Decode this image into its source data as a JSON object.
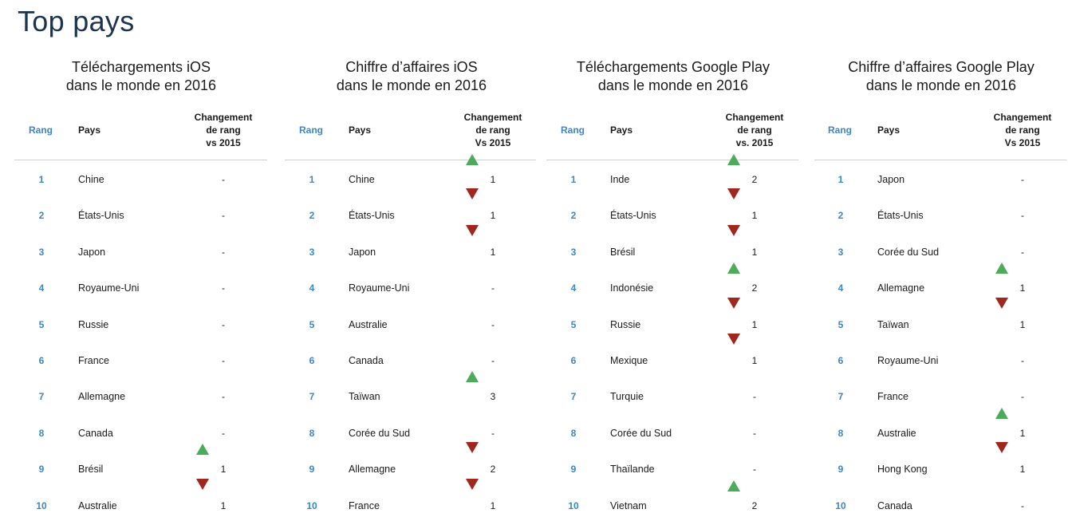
{
  "page": {
    "title": "Top pays"
  },
  "colors": {
    "rank_blue": "#3d86c6",
    "up_green": "#4caa5b",
    "down_red": "#a0271e",
    "title_navy": "#1d3450"
  },
  "panels": [
    {
      "title_line1": "Téléchargements iOS",
      "title_line2": "dans le monde en 2016",
      "header_rank": "Rang",
      "header_country": "Pays",
      "header_change_1": "Changement",
      "header_change_2": "de rang",
      "header_change_3": "vs 2015",
      "rows": [
        {
          "rank": "1",
          "country": "Chine",
          "change": "-",
          "direction": "none"
        },
        {
          "rank": "2",
          "country": "États-Unis",
          "change": "-",
          "direction": "none"
        },
        {
          "rank": "3",
          "country": "Japon",
          "change": "-",
          "direction": "none"
        },
        {
          "rank": "4",
          "country": "Royaume-Uni",
          "change": "-",
          "direction": "none"
        },
        {
          "rank": "5",
          "country": "Russie",
          "change": "-",
          "direction": "none"
        },
        {
          "rank": "6",
          "country": "France",
          "change": "-",
          "direction": "none"
        },
        {
          "rank": "7",
          "country": "Allemagne",
          "change": "-",
          "direction": "none"
        },
        {
          "rank": "8",
          "country": "Canada",
          "change": "-",
          "direction": "none"
        },
        {
          "rank": "9",
          "country": "Brésil",
          "change": "1",
          "direction": "up"
        },
        {
          "rank": "10",
          "country": "Australie",
          "change": "1",
          "direction": "down"
        }
      ]
    },
    {
      "title_line1": "Chiffre d’affaires iOS",
      "title_line2": "dans le monde en 2016",
      "header_rank": "Rang",
      "header_country": "Pays",
      "header_change_1": "Changement",
      "header_change_2": "de rang",
      "header_change_3": "Vs 2015",
      "rows": [
        {
          "rank": "1",
          "country": "Chine",
          "change": "1",
          "direction": "up"
        },
        {
          "rank": "2",
          "country": "États-Unis",
          "change": "1",
          "direction": "down"
        },
        {
          "rank": "3",
          "country": "Japon",
          "change": "1",
          "direction": "down"
        },
        {
          "rank": "4",
          "country": "Royaume-Uni",
          "change": "-",
          "direction": "none"
        },
        {
          "rank": "5",
          "country": "Australie",
          "change": "-",
          "direction": "none"
        },
        {
          "rank": "6",
          "country": "Canada",
          "change": "-",
          "direction": "none"
        },
        {
          "rank": "7",
          "country": "Taïwan",
          "change": "3",
          "direction": "up"
        },
        {
          "rank": "8",
          "country": "Corée du Sud",
          "change": "-",
          "direction": "none"
        },
        {
          "rank": "9",
          "country": "Allemagne",
          "change": "2",
          "direction": "down"
        },
        {
          "rank": "10",
          "country": "France",
          "change": "1",
          "direction": "down"
        }
      ]
    },
    {
      "title_line1": "Téléchargements Google Play",
      "title_line2": "dans le monde en 2016",
      "header_rank": "Rang",
      "header_country": "Pays",
      "header_change_1": "Changement",
      "header_change_2": "de rang",
      "header_change_3": "vs. 2015",
      "rows": [
        {
          "rank": "1",
          "country": "Inde",
          "change": "2",
          "direction": "up"
        },
        {
          "rank": "2",
          "country": "États-Unis",
          "change": "1",
          "direction": "down"
        },
        {
          "rank": "3",
          "country": "Brésil",
          "change": "1",
          "direction": "down"
        },
        {
          "rank": "4",
          "country": "Indonésie",
          "change": "2",
          "direction": "up"
        },
        {
          "rank": "5",
          "country": "Russie",
          "change": "1",
          "direction": "down"
        },
        {
          "rank": "6",
          "country": "Mexique",
          "change": "1",
          "direction": "down"
        },
        {
          "rank": "7",
          "country": "Turquie",
          "change": "-",
          "direction": "none"
        },
        {
          "rank": "8",
          "country": "Corée du Sud",
          "change": "-",
          "direction": "none"
        },
        {
          "rank": "9",
          "country": "Thaïlande",
          "change": "-",
          "direction": "none"
        },
        {
          "rank": "10",
          "country": "Vietnam",
          "change": "2",
          "direction": "up"
        }
      ]
    },
    {
      "title_line1": "Chiffre d’affaires Google Play",
      "title_line2": "dans le monde en 2016",
      "header_rank": "Rang",
      "header_country": "Pays",
      "header_change_1": "Changement",
      "header_change_2": "de rang",
      "header_change_3": "Vs 2015",
      "rows": [
        {
          "rank": "1",
          "country": "Japon",
          "change": "-",
          "direction": "none"
        },
        {
          "rank": "2",
          "country": "États-Unis",
          "change": "-",
          "direction": "none"
        },
        {
          "rank": "3",
          "country": "Corée du Sud",
          "change": "-",
          "direction": "none"
        },
        {
          "rank": "4",
          "country": "Allemagne",
          "change": "1",
          "direction": "up"
        },
        {
          "rank": "5",
          "country": "Taïwan",
          "change": "1",
          "direction": "down"
        },
        {
          "rank": "6",
          "country": "Royaume-Uni",
          "change": "-",
          "direction": "none"
        },
        {
          "rank": "7",
          "country": "France",
          "change": "-",
          "direction": "none"
        },
        {
          "rank": "8",
          "country": "Australie",
          "change": "1",
          "direction": "up"
        },
        {
          "rank": "9",
          "country": "Hong Kong",
          "change": "1",
          "direction": "down"
        },
        {
          "rank": "10",
          "country": "Canada",
          "change": "-",
          "direction": "none"
        }
      ]
    }
  ]
}
